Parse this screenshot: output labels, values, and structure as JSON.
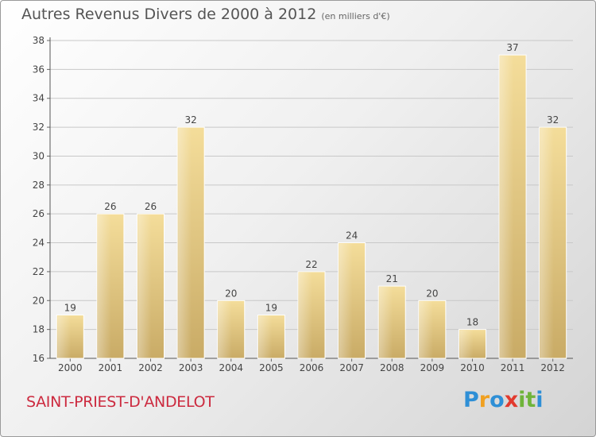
{
  "chart_data": {
    "type": "bar",
    "title": "Autres Revenus Divers de 2000 à 2012",
    "subtitle": "(en milliers d'€)",
    "categories": [
      "2000",
      "2001",
      "2002",
      "2003",
      "2004",
      "2005",
      "2006",
      "2007",
      "2008",
      "2009",
      "2010",
      "2011",
      "2012"
    ],
    "values": [
      19,
      26,
      26,
      32,
      20,
      19,
      22,
      24,
      21,
      20,
      18,
      37,
      32
    ],
    "ylim": [
      16,
      38
    ],
    "yticks": [
      16,
      18,
      20,
      22,
      24,
      26,
      28,
      30,
      32,
      34,
      36,
      38
    ],
    "grid": true,
    "bar_color": "#e7cc85"
  },
  "footer": {
    "commune": "SAINT-PRIEST-D'ANDELOT",
    "logo_letters": [
      "P",
      "r",
      "o",
      "x",
      "i",
      "t",
      "i"
    ],
    "logo_colors": [
      "#2e8fd6",
      "#f0a020",
      "#2e8fd6",
      "#e23a2e",
      "#6fb43a",
      "#6fb43a",
      "#2e8fd6"
    ]
  }
}
